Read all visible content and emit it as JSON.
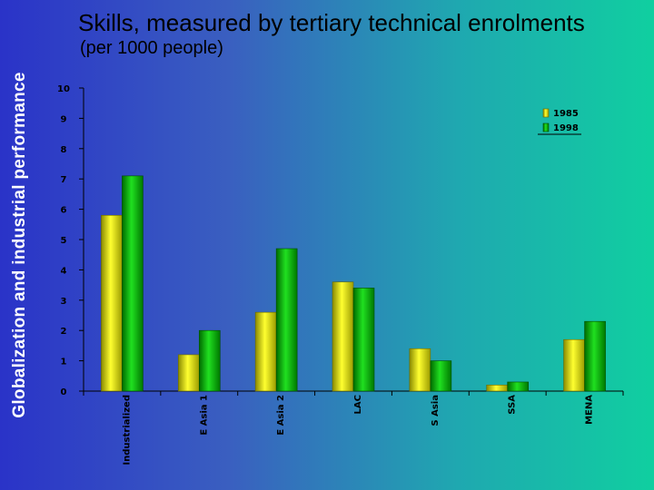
{
  "side_title": "Globalization and industrial performance",
  "colors": {
    "series_1985": "#e8e000",
    "series_1998": "#10c010",
    "axis": "#000000"
  },
  "chart_data": {
    "type": "bar",
    "title": "Skills, measured by tertiary technical enrolments",
    "subtitle": "(per 1000 people)",
    "xlabel": "",
    "ylabel": "",
    "ylim": [
      0,
      10
    ],
    "yticks": [
      0,
      1,
      2,
      3,
      4,
      5,
      6,
      7,
      8,
      9,
      10
    ],
    "categories": [
      "Industrialized",
      "E Asia 1",
      "E Asia 2",
      "LAC",
      "S Asia",
      "SSA",
      "MENA"
    ],
    "series": [
      {
        "name": "1985",
        "values": [
          5.8,
          1.2,
          2.6,
          3.6,
          1.4,
          0.2,
          1.7
        ]
      },
      {
        "name": "1998",
        "values": [
          7.1,
          2.0,
          4.7,
          3.4,
          1.0,
          0.3,
          2.3
        ]
      }
    ],
    "legend": "top-right",
    "grid": false
  }
}
